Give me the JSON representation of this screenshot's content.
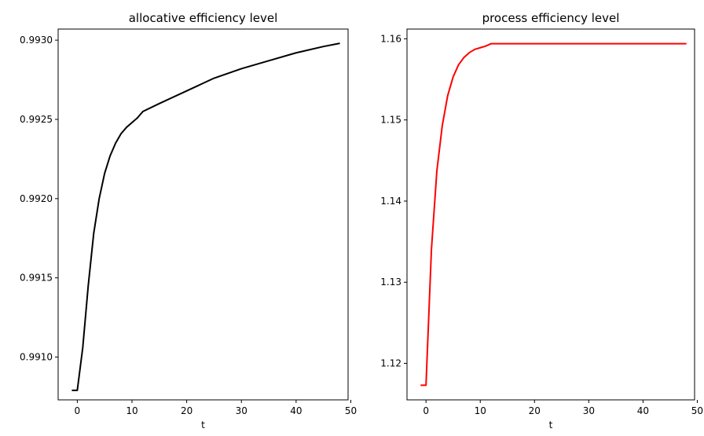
{
  "chart_data": [
    {
      "type": "line",
      "title": "allocative efficiency level",
      "xlabel": "t",
      "ylabel": "",
      "xlim": [
        -3.5,
        49.5
      ],
      "ylim": [
        0.99073,
        0.99307
      ],
      "xticks": [
        0,
        10,
        20,
        30,
        40,
        50
      ],
      "xtick_labels": [
        "0",
        "10",
        "20",
        "30",
        "40",
        "50"
      ],
      "yticks": [
        0.991,
        0.9915,
        0.992,
        0.9925,
        0.993
      ],
      "ytick_labels": [
        "0.9910",
        "0.9915",
        "0.9920",
        "0.9925",
        "0.9930"
      ],
      "grid": false,
      "color": "#000000",
      "series": [
        {
          "x": [
            -1,
            0,
            1,
            2,
            3,
            4,
            5,
            6,
            7,
            8,
            9,
            10,
            11,
            12,
            15,
            20,
            25,
            30,
            35,
            40,
            45,
            48
          ],
          "y": [
            0.99079,
            0.99079,
            0.99106,
            0.99145,
            0.99178,
            0.992,
            0.99216,
            0.99227,
            0.99235,
            0.99241,
            0.99245,
            0.99248,
            0.99251,
            0.99255,
            0.9926,
            0.99268,
            0.99276,
            0.99282,
            0.99287,
            0.99292,
            0.99296,
            0.99298
          ]
        }
      ]
    },
    {
      "type": "line",
      "title": "process efficiency level",
      "xlabel": "t",
      "ylabel": "",
      "xlim": [
        -3.5,
        49.5
      ],
      "ylim": [
        1.1155,
        1.1612
      ],
      "xticks": [
        0,
        10,
        20,
        30,
        40,
        50
      ],
      "xtick_labels": [
        "0",
        "10",
        "20",
        "30",
        "40",
        "50"
      ],
      "yticks": [
        1.12,
        1.13,
        1.14,
        1.15,
        1.16
      ],
      "ytick_labels": [
        "1.12",
        "1.13",
        "1.14",
        "1.15",
        "1.16"
      ],
      "grid": false,
      "color": "#ff0000",
      "series": [
        {
          "x": [
            -1,
            0,
            1,
            2,
            3,
            4,
            5,
            6,
            7,
            8,
            9,
            10,
            11,
            12,
            15,
            20,
            30,
            40,
            48
          ],
          "y": [
            1.1173,
            1.1173,
            1.134,
            1.1437,
            1.1493,
            1.153,
            1.1553,
            1.1568,
            1.1577,
            1.1583,
            1.1587,
            1.1589,
            1.1591,
            1.1594,
            1.1594,
            1.1594,
            1.1594,
            1.1594,
            1.1594
          ]
        }
      ]
    }
  ]
}
